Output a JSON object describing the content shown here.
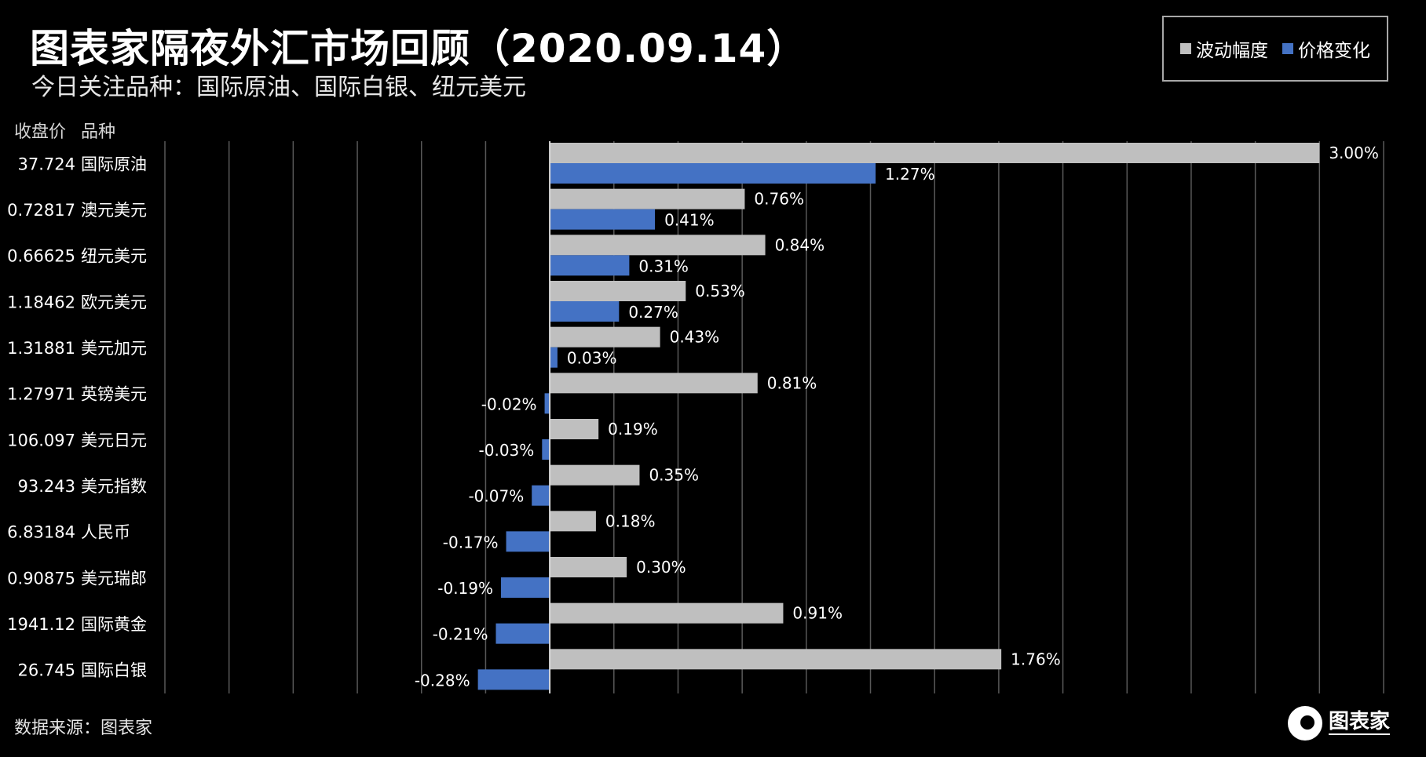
{
  "title": "图表家隔夜外汇市场回顾（2020.09.14）",
  "subtitle": "今日关注品种：国际原油、国际白银、纽元美元",
  "legend": {
    "vol": "波动幅度",
    "chg": "价格变化"
  },
  "columns": {
    "price": "收盘价",
    "name": "品种"
  },
  "source": "数据来源：图表家",
  "logo": {
    "text": "图表家"
  },
  "colors": {
    "vol": "#bfbfbf",
    "chg": "#4472c4",
    "grid": "#595959",
    "axis": "#d9d9d9"
  },
  "chart_data": {
    "type": "bar",
    "orientation": "horizontal",
    "title": "图表家隔夜外汇市场回顾（2020.09.14）",
    "xlim": [
      -0.015,
      0.0325
    ],
    "categories": [
      "国际原油",
      "澳元美元",
      "纽元美元",
      "欧元美元",
      "美元加元",
      "英镑美元",
      "美元日元",
      "美元指数",
      "人民币",
      "美元瑞郎",
      "国际黄金",
      "国际白银"
    ],
    "prices": [
      "37.724",
      "0.72817",
      "0.66625",
      "1.18462",
      "1.31881",
      "1.27971",
      "106.097",
      "93.243",
      "6.83184",
      "0.90875",
      "1941.12",
      "26.745"
    ],
    "series": [
      {
        "name": "波动幅度",
        "values": [
          0.03,
          0.0076,
          0.0084,
          0.0053,
          0.0043,
          0.0081,
          0.0019,
          0.0035,
          0.0018,
          0.003,
          0.0091,
          0.0176
        ],
        "labels": [
          "3.00%",
          "0.76%",
          "0.84%",
          "0.53%",
          "0.43%",
          "0.81%",
          "0.19%",
          "0.35%",
          "0.18%",
          "0.30%",
          "0.91%",
          "1.76%"
        ]
      },
      {
        "name": "价格变化",
        "values": [
          0.0127,
          0.0041,
          0.0031,
          0.0027,
          0.0003,
          -0.0002,
          -0.0003,
          -0.0007,
          -0.0017,
          -0.0019,
          -0.0021,
          -0.0028
        ],
        "labels": [
          "1.27%",
          "0.41%",
          "0.31%",
          "0.27%",
          "0.03%",
          "-0.02%",
          "-0.03%",
          "-0.07%",
          "-0.17%",
          "-0.19%",
          "-0.21%",
          "-0.28%"
        ]
      }
    ]
  }
}
